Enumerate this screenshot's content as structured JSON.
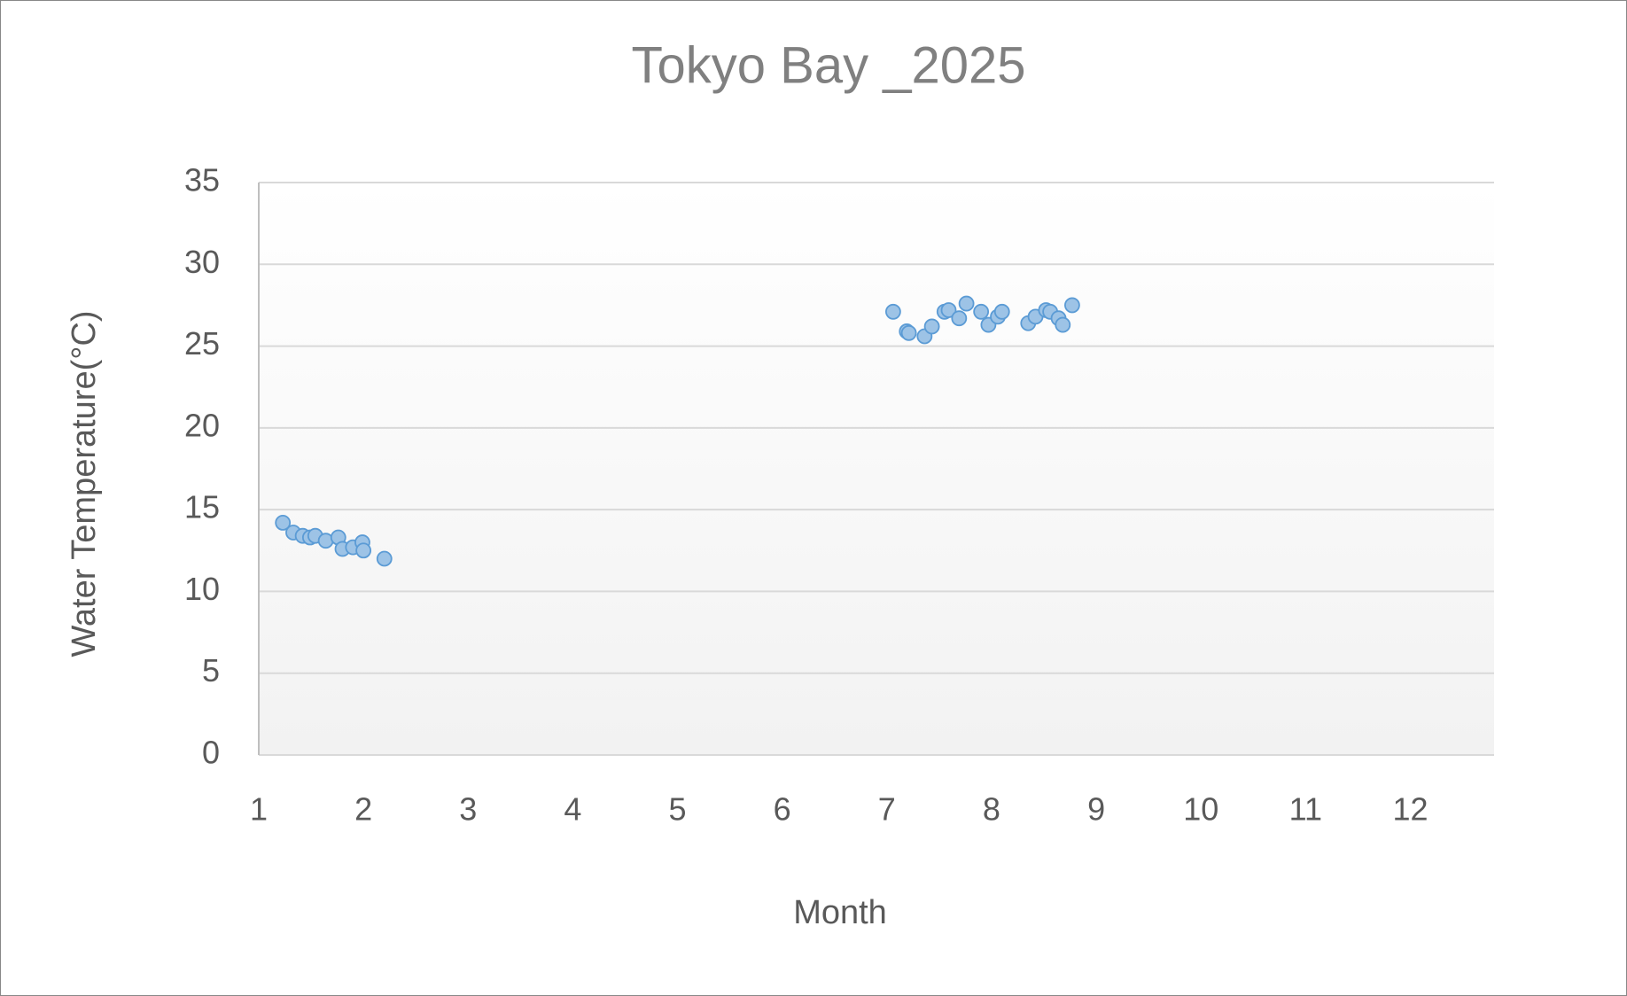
{
  "chart_data": {
    "type": "scatter",
    "title": "Tokyo Bay _2025",
    "x_label": "Month",
    "y_label": "Water Temperature(°C)",
    "series": [
      {
        "color": "#9dc3e6",
        "x": [
          1.23,
          1.33,
          1.42,
          1.49,
          1.54,
          1.64,
          1.76,
          1.8,
          1.9,
          1.99,
          2.0,
          2.2,
          7.06,
          7.19,
          7.21,
          7.36,
          7.43,
          7.55,
          7.59,
          7.69,
          7.76,
          7.9,
          7.97,
          8.06,
          8.1,
          8.35,
          8.42,
          8.52,
          8.56,
          8.64,
          8.68,
          8.77
        ],
        "values": [
          14.2,
          13.6,
          13.4,
          13.3,
          13.4,
          13.1,
          13.3,
          12.6,
          12.7,
          13.0,
          12.5,
          12.0,
          27.1,
          25.9,
          25.8,
          25.6,
          26.2,
          27.1,
          27.2,
          26.7,
          27.6,
          27.1,
          26.3,
          26.8,
          27.1,
          26.4,
          26.8,
          27.2,
          27.1,
          26.7,
          26.3,
          27.5
        ]
      }
    ],
    "xlim": [
      1,
      12.8
    ],
    "xticks": [
      1,
      2,
      3,
      4,
      5,
      6,
      7,
      8,
      9,
      10,
      11,
      12
    ],
    "ylim": [
      0,
      35
    ],
    "yticks": [
      0,
      5,
      10,
      15,
      20,
      25,
      30,
      35
    ],
    "grid": true
  }
}
